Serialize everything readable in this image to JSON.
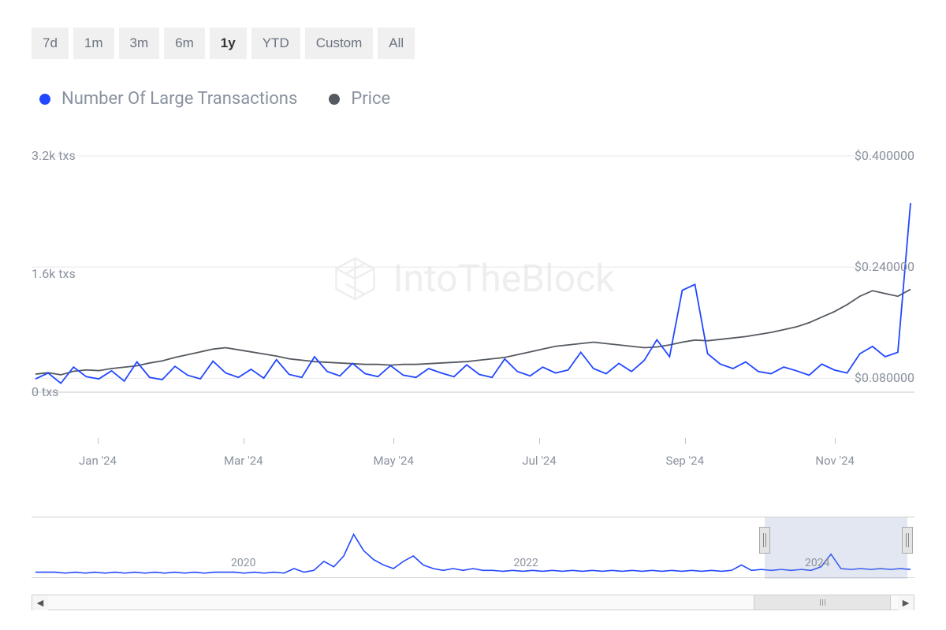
{
  "time_ranges": [
    {
      "label": "7d",
      "active": false
    },
    {
      "label": "1m",
      "active": false
    },
    {
      "label": "3m",
      "active": false
    },
    {
      "label": "6m",
      "active": false
    },
    {
      "label": "1y",
      "active": true
    },
    {
      "label": "YTD",
      "active": false
    },
    {
      "label": "Custom",
      "active": false
    },
    {
      "label": "All",
      "active": false
    }
  ],
  "legend": {
    "series1": {
      "label": "Number Of Large Transactions",
      "color": "#2147ff"
    },
    "series2": {
      "label": "Price",
      "color": "#555a60"
    }
  },
  "watermark": "IntoTheBlock",
  "chart": {
    "type": "line",
    "background_color": "#ffffff",
    "grid_color": "#e8e8e8",
    "left_axis": {
      "unit": "txs",
      "ticks": [
        {
          "label": "3.2k txs",
          "value": 3200
        },
        {
          "label": "1.6k txs",
          "value": 1600
        },
        {
          "label": "0 txs",
          "value": 0
        }
      ],
      "min": 0,
      "max": 3200
    },
    "right_axis": {
      "ticks": [
        {
          "label": "$0.400000",
          "value": 0.4
        },
        {
          "label": "$0.240000",
          "value": 0.24
        },
        {
          "label": "$0.080000",
          "value": 0.08
        }
      ],
      "min": 0.06,
      "max": 0.4
    },
    "x_axis": {
      "labels": [
        "Jan '24",
        "Mar '24",
        "May '24",
        "Jul '24",
        "Sep '24",
        "Nov '24"
      ],
      "positions_pct": [
        7.5,
        24,
        41,
        57.5,
        74,
        91
      ]
    },
    "txs_series": {
      "color": "#2147ff",
      "line_width": 1.8,
      "values": [
        180,
        260,
        120,
        340,
        210,
        180,
        290,
        150,
        410,
        200,
        170,
        350,
        230,
        180,
        420,
        260,
        200,
        310,
        190,
        440,
        240,
        200,
        480,
        280,
        220,
        390,
        250,
        210,
        360,
        230,
        200,
        320,
        260,
        210,
        370,
        240,
        200,
        450,
        280,
        220,
        340,
        260,
        300,
        540,
        320,
        250,
        390,
        280,
        430,
        710,
        480,
        1380,
        1460,
        520,
        380,
        320,
        410,
        280,
        250,
        340,
        290,
        230,
        380,
        300,
        260,
        520,
        620,
        480,
        540,
        2560
      ]
    },
    "price_series": {
      "color": "#555a60",
      "line_width": 1.8,
      "values": [
        0.086,
        0.088,
        0.085,
        0.09,
        0.092,
        0.091,
        0.094,
        0.096,
        0.098,
        0.102,
        0.105,
        0.11,
        0.114,
        0.118,
        0.122,
        0.124,
        0.121,
        0.118,
        0.115,
        0.112,
        0.108,
        0.106,
        0.104,
        0.103,
        0.102,
        0.101,
        0.1,
        0.1,
        0.099,
        0.1,
        0.1,
        0.101,
        0.102,
        0.103,
        0.104,
        0.106,
        0.108,
        0.11,
        0.114,
        0.118,
        0.122,
        0.126,
        0.128,
        0.13,
        0.132,
        0.13,
        0.128,
        0.126,
        0.124,
        0.125,
        0.128,
        0.132,
        0.135,
        0.134,
        0.136,
        0.138,
        0.14,
        0.143,
        0.146,
        0.15,
        0.154,
        0.16,
        0.168,
        0.176,
        0.186,
        0.198,
        0.206,
        0.202,
        0.198,
        0.208
      ]
    }
  },
  "mini": {
    "x_labels": [
      {
        "label": "2020",
        "pos_pct": 24
      },
      {
        "label": "2022",
        "pos_pct": 56
      },
      {
        "label": "2024",
        "pos_pct": 89
      }
    ],
    "selection": {
      "left_pct": 83,
      "right_pct": 99.2
    },
    "line_color": "#2147ff",
    "values": [
      6,
      6,
      6,
      5,
      6,
      5,
      6,
      5,
      6,
      5,
      6,
      5,
      6,
      5,
      6,
      5,
      6,
      5,
      6,
      6,
      6,
      5,
      6,
      5,
      6,
      5,
      10,
      6,
      8,
      18,
      12,
      24,
      48,
      30,
      20,
      14,
      10,
      18,
      24,
      14,
      10,
      8,
      10,
      8,
      10,
      8,
      8,
      7,
      8,
      7,
      8,
      7,
      8,
      7,
      8,
      7,
      8,
      7,
      8,
      7,
      8,
      7,
      8,
      7,
      8,
      7,
      8,
      7,
      8,
      7,
      8,
      14,
      8,
      9,
      8,
      9,
      8,
      9,
      8,
      12,
      26,
      10,
      9,
      10,
      9,
      10,
      9,
      10,
      9
    ],
    "max": 60
  },
  "scroll": {
    "thumb_left_pct": 83,
    "thumb_width_pct": 16.2
  }
}
